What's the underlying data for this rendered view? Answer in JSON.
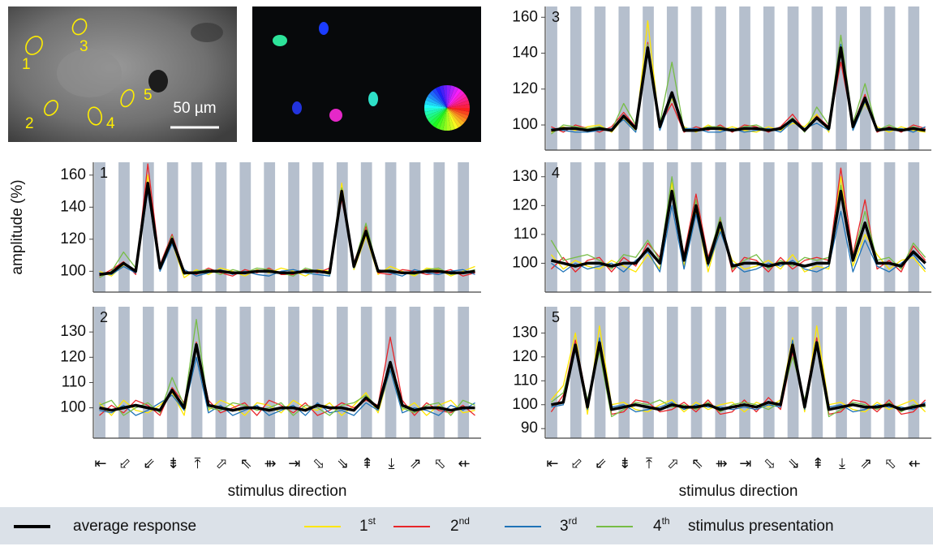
{
  "micrograph": {
    "cell_labels": [
      "1",
      "2",
      "3",
      "4",
      "5"
    ],
    "scale_bar": "50 µm"
  },
  "ylabel": "amplitude (%)",
  "legend_note": "stimulus presentation",
  "chart_data": [
    {
      "type": "line",
      "title": "1",
      "xlim": [
        0,
        16
      ],
      "ylim": [
        87,
        168
      ],
      "yticks": [
        100,
        120,
        140,
        160
      ],
      "x": [
        0.25,
        0.75,
        1.25,
        1.75,
        2.25,
        2.75,
        3.25,
        3.75,
        4.25,
        4.75,
        5.25,
        5.75,
        6.25,
        6.75,
        7.25,
        7.75,
        8.25,
        8.75,
        9.25,
        9.75,
        10.25,
        10.75,
        11.25,
        11.75,
        12.25,
        12.75,
        13.25,
        13.75,
        14.25,
        14.75,
        15.25,
        15.75
      ],
      "series": [
        {
          "name": "average response",
          "color": "#000000",
          "values": [
            98,
            99,
            105,
            100,
            155,
            102,
            120,
            99,
            99,
            100,
            100,
            99,
            99,
            100,
            100,
            99,
            99,
            100,
            100,
            99,
            150,
            103,
            125,
            100,
            100,
            99,
            99,
            100,
            100,
            99,
            99,
            100
          ]
        },
        {
          "name": "1st",
          "color": "#ffe600",
          "values": [
            100,
            97,
            104,
            101,
            160,
            101,
            118,
            96,
            101,
            98,
            102,
            100,
            97,
            101,
            99,
            102,
            100,
            97,
            101,
            100,
            155,
            101,
            122,
            98,
            103,
            100,
            97,
            102,
            101,
            97,
            100,
            103
          ]
        },
        {
          "name": "2nd",
          "color": "#e8262a",
          "values": [
            97,
            101,
            106,
            98,
            167,
            104,
            123,
            100,
            98,
            102,
            99,
            97,
            101,
            99,
            102,
            98,
            98,
            101,
            99,
            102,
            145,
            105,
            128,
            99,
            98,
            101,
            100,
            98,
            99,
            101,
            97,
            99
          ]
        },
        {
          "name": "3rd",
          "color": "#1f73b7",
          "values": [
            99,
            98,
            103,
            99,
            150,
            100,
            117,
            101,
            97,
            99,
            101,
            98,
            100,
            98,
            97,
            100,
            101,
            99,
            98,
            97,
            147,
            102,
            124,
            101,
            99,
            97,
            101,
            99,
            98,
            100,
            101,
            98
          ]
        },
        {
          "name": "4th",
          "color": "#77bd45",
          "values": [
            96,
            100,
            112,
            102,
            152,
            103,
            122,
            98,
            100,
            101,
            98,
            101,
            99,
            102,
            101,
            99,
            97,
            102,
            100,
            98,
            152,
            104,
            130,
            100,
            101,
            99,
            98,
            101,
            102,
            98,
            99,
            101
          ]
        }
      ]
    },
    {
      "type": "line",
      "title": "2",
      "xlim": [
        0,
        16
      ],
      "ylim": [
        88,
        140
      ],
      "yticks": [
        100,
        110,
        120,
        130
      ],
      "x": [
        0.25,
        0.75,
        1.25,
        1.75,
        2.25,
        2.75,
        3.25,
        3.75,
        4.25,
        4.75,
        5.25,
        5.75,
        6.25,
        6.75,
        7.25,
        7.75,
        8.25,
        8.75,
        9.25,
        9.75,
        10.25,
        10.75,
        11.25,
        11.75,
        12.25,
        12.75,
        13.25,
        13.75,
        14.25,
        14.75,
        15.25,
        15.75
      ],
      "categories": [
        "⇤",
        "⬃",
        "⇙",
        "⇟",
        "⤒",
        "⬀",
        "⇖",
        "⇻",
        "⇥",
        "⬂",
        "⇘",
        "⇞",
        "⤓",
        "⇗",
        "⬁",
        "⇷"
      ],
      "xlabel": "stimulus direction",
      "series": [
        {
          "color": "#000000",
          "values": [
            100,
            99,
            100,
            101,
            100,
            99,
            107,
            100,
            125,
            101,
            100,
            99,
            100,
            100,
            99,
            100,
            100,
            99,
            101,
            100,
            100,
            99,
            104,
            100,
            118,
            101,
            99,
            100,
            100,
            99,
            100,
            100
          ]
        },
        {
          "color": "#ffe600",
          "values": [
            102,
            97,
            103,
            99,
            98,
            101,
            106,
            97,
            124,
            99,
            103,
            101,
            97,
            102,
            101,
            98,
            103,
            100,
            99,
            102,
            97,
            101,
            106,
            98,
            115,
            99,
            102,
            97,
            101,
            103,
            98,
            99
          ]
        },
        {
          "color": "#e8262a",
          "values": [
            97,
            101,
            98,
            103,
            101,
            97,
            108,
            102,
            126,
            103,
            98,
            100,
            102,
            97,
            103,
            101,
            98,
            102,
            97,
            99,
            102,
            100,
            103,
            101,
            128,
            103,
            97,
            102,
            99,
            98,
            101,
            97
          ]
        },
        {
          "color": "#1f73b7",
          "values": [
            99,
            98,
            101,
            97,
            99,
            102,
            105,
            99,
            120,
            98,
            101,
            97,
            99,
            101,
            97,
            99,
            101,
            97,
            102,
            98,
            99,
            97,
            102,
            99,
            115,
            98,
            100,
            99,
            97,
            101,
            99,
            102
          ]
        },
        {
          "color": "#77bd45",
          "values": [
            101,
            103,
            97,
            100,
            102,
            98,
            112,
            101,
            135,
            100,
            99,
            102,
            101,
            99,
            100,
            102,
            97,
            101,
            100,
            97,
            101,
            102,
            105,
            100,
            117,
            100,
            98,
            101,
            102,
            97,
            103,
            101
          ]
        }
      ]
    },
    {
      "type": "line",
      "title": "3",
      "xlim": [
        0,
        16
      ],
      "ylim": [
        86,
        166
      ],
      "yticks": [
        100,
        120,
        140,
        160
      ],
      "x": [
        0.25,
        0.75,
        1.25,
        1.75,
        2.25,
        2.75,
        3.25,
        3.75,
        4.25,
        4.75,
        5.25,
        5.75,
        6.25,
        6.75,
        7.25,
        7.75,
        8.25,
        8.75,
        9.25,
        9.75,
        10.25,
        10.75,
        11.25,
        11.75,
        12.25,
        12.75,
        13.25,
        13.75,
        14.25,
        14.75,
        15.25,
        15.75
      ],
      "series": [
        {
          "color": "#000000",
          "values": [
            97,
            98,
            98,
            97,
            98,
            97,
            105,
            98,
            143,
            99,
            118,
            97,
            97,
            98,
            98,
            97,
            98,
            98,
            97,
            98,
            103,
            97,
            104,
            98,
            143,
            99,
            115,
            97,
            98,
            97,
            98,
            97
          ]
        },
        {
          "color": "#ffe600",
          "values": [
            96,
            99,
            97,
            99,
            100,
            96,
            104,
            97,
            158,
            98,
            115,
            99,
            96,
            100,
            97,
            99,
            97,
            96,
            99,
            97,
            101,
            99,
            106,
            96,
            140,
            98,
            112,
            99,
            96,
            99,
            97,
            96
          ]
        },
        {
          "color": "#e8262a",
          "values": [
            99,
            96,
            100,
            98,
            96,
            99,
            107,
            99,
            146,
            100,
            112,
            96,
            99,
            97,
            100,
            96,
            100,
            99,
            96,
            99,
            106,
            97,
            105,
            99,
            135,
            100,
            117,
            96,
            99,
            96,
            100,
            98
          ]
        },
        {
          "color": "#1f73b7",
          "values": [
            98,
            97,
            96,
            96,
            97,
            98,
            103,
            96,
            140,
            97,
            116,
            98,
            98,
            96,
            96,
            98,
            96,
            97,
            98,
            96,
            102,
            98,
            101,
            97,
            145,
            97,
            113,
            98,
            97,
            98,
            96,
            99
          ]
        },
        {
          "color": "#77bd45",
          "values": [
            95,
            100,
            99,
            98,
            99,
            97,
            112,
            100,
            145,
            101,
            135,
            97,
            97,
            99,
            99,
            97,
            99,
            100,
            97,
            98,
            104,
            96,
            110,
            100,
            150,
            101,
            123,
            97,
            100,
            97,
            99,
            97
          ]
        }
      ]
    },
    {
      "type": "line",
      "title": "4",
      "xlim": [
        0,
        16
      ],
      "ylim": [
        90,
        135
      ],
      "yticks": [
        100,
        110,
        120,
        130
      ],
      "x": [
        0.25,
        0.75,
        1.25,
        1.75,
        2.25,
        2.75,
        3.25,
        3.75,
        4.25,
        4.75,
        5.25,
        5.75,
        6.25,
        6.75,
        7.25,
        7.75,
        8.25,
        8.75,
        9.25,
        9.75,
        10.25,
        10.75,
        11.25,
        11.75,
        12.25,
        12.75,
        13.25,
        13.75,
        14.25,
        14.75,
        15.25,
        15.75
      ],
      "series": [
        {
          "color": "#000000",
          "values": [
            101,
            100,
            99,
            100,
            100,
            99,
            100,
            100,
            105,
            100,
            125,
            101,
            120,
            100,
            114,
            99,
            100,
            100,
            99,
            100,
            100,
            99,
            100,
            100,
            125,
            101,
            114,
            100,
            100,
            99,
            104,
            100
          ]
        },
        {
          "color": "#ffe600",
          "values": [
            103,
            98,
            101,
            99,
            98,
            101,
            99,
            97,
            103,
            98,
            128,
            99,
            118,
            97,
            112,
            101,
            98,
            99,
            101,
            98,
            103,
            97,
            99,
            98,
            130,
            99,
            110,
            103,
            98,
            101,
            102,
            97
          ]
        },
        {
          "color": "#e8262a",
          "values": [
            98,
            102,
            97,
            101,
            102,
            97,
            102,
            99,
            107,
            102,
            124,
            103,
            124,
            102,
            115,
            97,
            102,
            101,
            97,
            102,
            98,
            101,
            102,
            101,
            133,
            103,
            122,
            98,
            101,
            97,
            106,
            101
          ]
        },
        {
          "color": "#1f73b7",
          "values": [
            100,
            97,
            100,
            98,
            99,
            100,
            97,
            101,
            104,
            97,
            120,
            98,
            117,
            99,
            111,
            100,
            97,
            98,
            100,
            99,
            101,
            98,
            97,
            99,
            118,
            97,
            108,
            99,
            97,
            100,
            103,
            98
          ]
        },
        {
          "color": "#77bd45",
          "values": [
            108,
            101,
            102,
            103,
            101,
            98,
            103,
            102,
            108,
            101,
            130,
            102,
            122,
            101,
            116,
            98,
            101,
            103,
            98,
            101,
            99,
            102,
            101,
            102,
            127,
            102,
            118,
            101,
            102,
            98,
            107,
            102
          ]
        }
      ]
    },
    {
      "type": "line",
      "title": "5",
      "xlim": [
        0,
        16
      ],
      "ylim": [
        86,
        141
      ],
      "yticks": [
        90,
        100,
        110,
        120,
        130
      ],
      "x": [
        0.25,
        0.75,
        1.25,
        1.75,
        2.25,
        2.75,
        3.25,
        3.75,
        4.25,
        4.75,
        5.25,
        5.75,
        6.25,
        6.75,
        7.25,
        7.75,
        8.25,
        8.75,
        9.25,
        9.75,
        10.25,
        10.75,
        11.25,
        11.75,
        12.25,
        12.75,
        13.25,
        13.75,
        14.25,
        14.75,
        15.25,
        15.75
      ],
      "categories": [
        "⇤",
        "⬃",
        "⇙",
        "⇟",
        "⤒",
        "⬀",
        "⇖",
        "⇻",
        "⇥",
        "⬂",
        "⇘",
        "⇞",
        "⤓",
        "⇗",
        "⬁",
        "⇷"
      ],
      "xlabel": "stimulus direction",
      "series": [
        {
          "color": "#000000",
          "values": [
            100,
            101,
            125,
            99,
            126,
            98,
            99,
            100,
            99,
            98,
            100,
            99,
            99,
            100,
            98,
            99,
            100,
            99,
            101,
            100,
            125,
            99,
            126,
            98,
            99,
            100,
            99,
            99,
            100,
            98,
            99,
            100
          ]
        },
        {
          "color": "#ffe600",
          "values": [
            102,
            108,
            130,
            96,
            133,
            100,
            101,
            98,
            97,
            100,
            102,
            97,
            101,
            98,
            100,
            101,
            97,
            101,
            99,
            102,
            128,
            97,
            133,
            100,
            101,
            98,
            97,
            101,
            98,
            100,
            102,
            97
          ]
        },
        {
          "color": "#e8262a",
          "values": [
            97,
            104,
            127,
            101,
            124,
            96,
            97,
            102,
            101,
            97,
            98,
            101,
            97,
            102,
            96,
            97,
            102,
            97,
            103,
            98,
            122,
            101,
            128,
            96,
            97,
            102,
            101,
            97,
            102,
            96,
            97,
            102
          ]
        },
        {
          "color": "#1f73b7",
          "values": [
            99,
            100,
            123,
            98,
            128,
            99,
            100,
            97,
            98,
            99,
            101,
            98,
            100,
            99,
            99,
            98,
            99,
            98,
            100,
            99,
            127,
            98,
            124,
            99,
            100,
            97,
            98,
            100,
            99,
            99,
            98,
            101
          ]
        },
        {
          "color": "#77bd45",
          "values": [
            101,
            105,
            124,
            102,
            122,
            95,
            98,
            101,
            100,
            102,
            99,
            100,
            98,
            101,
            97,
            100,
            101,
            100,
            98,
            101,
            120,
            102,
            125,
            95,
            98,
            101,
            100,
            98,
            101,
            97,
            100,
            99
          ]
        }
      ]
    }
  ]
}
